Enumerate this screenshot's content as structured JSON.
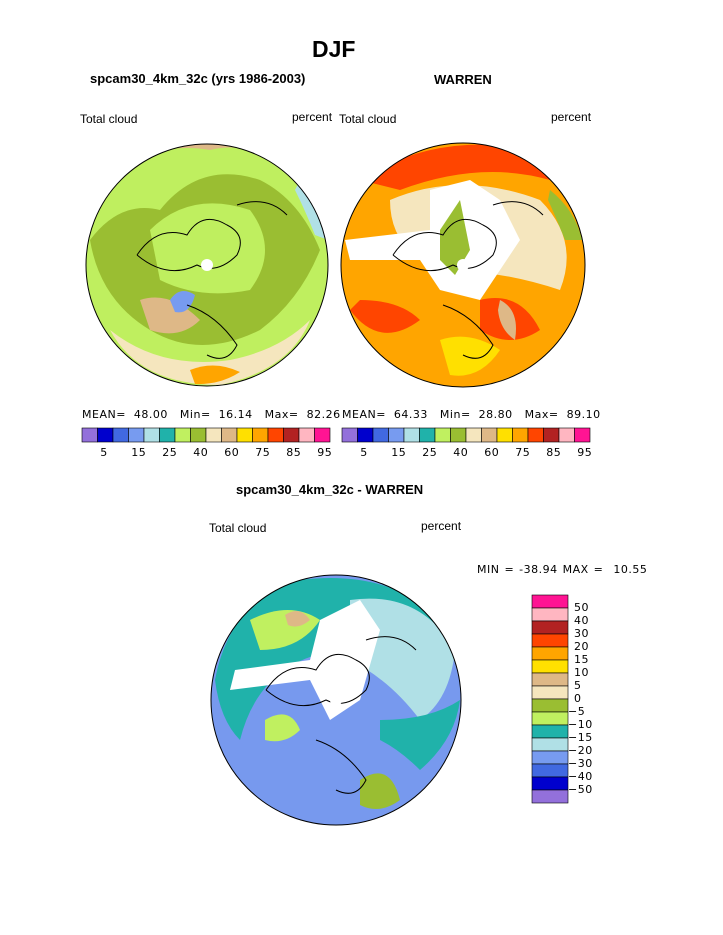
{
  "main_title": "DJF",
  "panels": [
    {
      "title": "spcam30_4km_32c (yrs 1986-2003)",
      "left_label": "Total cloud",
      "right_label": "percent",
      "stats": {
        "mean_label": "MEAN=",
        "mean": "48.00",
        "min_label": "Min=",
        "min": "16.14",
        "max_label": "Max=",
        "max": "82.26"
      },
      "base_color": "#bfef5f"
    },
    {
      "title": "WARREN",
      "left_label": "Total cloud",
      "right_label": "percent",
      "stats": {
        "mean_label": "MEAN=",
        "mean": "64.33",
        "min_label": "Min=",
        "min": "28.80",
        "max_label": "Max=",
        "max": "89.10"
      },
      "base_color": "#ffa500"
    },
    {
      "title": "spcam30_4km_32c - WARREN",
      "left_label": "Total cloud",
      "right_label": "percent",
      "stats_text": "MIN = -38.94 MAX =  10.55",
      "base_color": "#7799ee"
    }
  ],
  "chart_data": [
    {
      "type": "heatmap",
      "title": "spcam30_4km_32c (yrs 1986-2003)",
      "projection": "north polar stereographic",
      "variable": "Total cloud",
      "units": "percent",
      "colorbar": {
        "colors": [
          "#9370db",
          "#0000cd",
          "#4169e1",
          "#779bf0",
          "#b0e0e6",
          "#20b2aa",
          "#c0f060",
          "#9abe32",
          "#f5e6be",
          "#deb887",
          "#ffe000",
          "#ffa500",
          "#ff4500",
          "#b22222",
          "#ffb6c1",
          "#ff1493"
        ],
        "tick_labels": [
          "5",
          "15",
          "25",
          "40",
          "60",
          "75",
          "85",
          "95"
        ]
      },
      "mean": 48.0,
      "min": 16.14,
      "max": 82.26
    },
    {
      "type": "heatmap",
      "title": "WARREN",
      "projection": "north polar stereographic",
      "variable": "Total cloud",
      "units": "percent",
      "colorbar": {
        "tick_labels": [
          "5",
          "15",
          "25",
          "40",
          "60",
          "75",
          "85",
          "95"
        ]
      },
      "mean": 64.33,
      "min": 28.8,
      "max": 89.1
    },
    {
      "type": "heatmap",
      "title": "spcam30_4km_32c - WARREN",
      "projection": "north polar stereographic",
      "variable": "Total cloud",
      "units": "percent",
      "colorbar": {
        "colors": [
          "#ff1493",
          "#ffb6c1",
          "#b22222",
          "#ff4500",
          "#ffa500",
          "#ffe000",
          "#deb887",
          "#f5e6be",
          "#9abe32",
          "#c0f060",
          "#20b2aa",
          "#b0e0e6",
          "#779bf0",
          "#4169e1",
          "#0000cd",
          "#9370db"
        ],
        "tick_labels": [
          "50",
          "40",
          "30",
          "20",
          "15",
          "10",
          "5",
          "0",
          "-5",
          "-10",
          "-15",
          "-20",
          "-30",
          "-40",
          "-50"
        ]
      },
      "min": -38.94,
      "max": 10.55
    }
  ]
}
